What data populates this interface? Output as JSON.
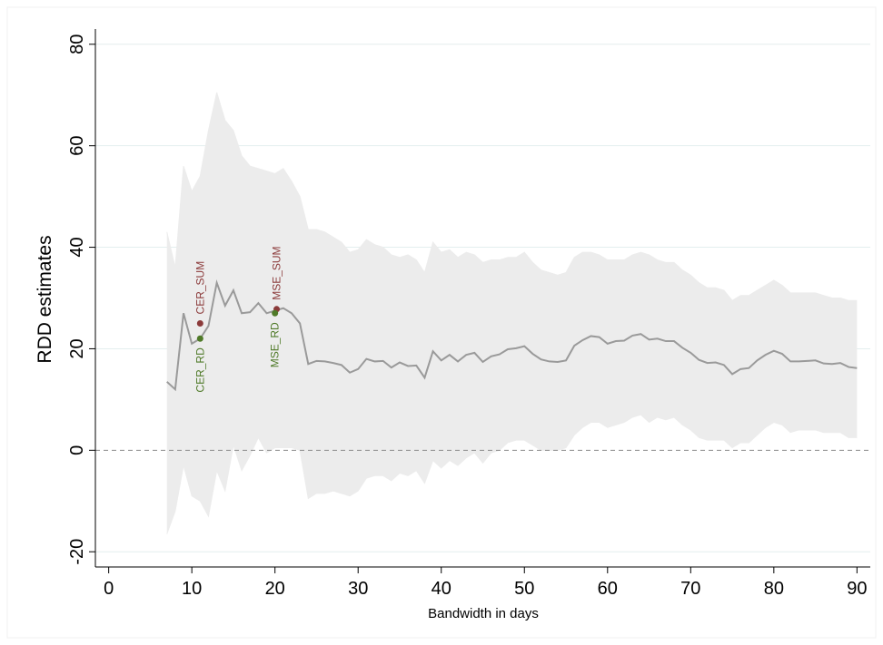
{
  "chart_data": {
    "type": "line",
    "x_label": "Bandwidth in days",
    "y_label": "RDD estimates",
    "x": [
      7,
      8,
      9,
      10,
      11,
      12,
      13,
      14,
      15,
      16,
      17,
      18,
      19,
      20,
      21,
      22,
      23,
      24,
      25,
      26,
      27,
      28,
      29,
      30,
      31,
      32,
      33,
      34,
      35,
      36,
      37,
      38,
      39,
      40,
      41,
      42,
      43,
      44,
      45,
      46,
      47,
      48,
      49,
      50,
      51,
      52,
      53,
      54,
      55,
      56,
      57,
      58,
      59,
      60,
      61,
      62,
      63,
      64,
      65,
      66,
      67,
      68,
      69,
      70,
      71,
      72,
      73,
      74,
      75,
      76,
      77,
      78,
      79,
      80,
      81,
      82,
      83,
      84,
      85,
      86,
      87,
      88,
      89,
      90
    ],
    "series": [
      {
        "color": "#9a9a9a",
        "values": [
          13.5,
          12,
          27,
          21,
          22,
          24.5,
          33,
          28.5,
          31.5,
          27,
          27.2,
          29,
          27,
          27.5,
          28,
          27,
          25,
          17,
          17.6,
          17.5,
          17.2,
          16.8,
          15.3,
          16,
          18,
          17.5,
          17.6,
          16.3,
          17.3,
          16.6,
          16.7,
          14.3,
          19.5,
          17.7,
          18.8,
          17.5,
          18.8,
          19.2,
          17.4,
          18.5,
          18.9,
          19.9,
          20.1,
          20.5,
          19,
          17.9,
          17.5,
          17.4,
          17.7,
          20.6,
          21.7,
          22.5,
          22.3,
          21,
          21.5,
          21.6,
          22.6,
          22.9,
          21.8,
          22,
          21.5,
          21.5,
          20.2,
          19.2,
          17.8,
          17.2,
          17.3,
          16.8,
          15,
          16,
          16.2,
          17.7,
          18.8,
          19.6,
          19,
          17.5,
          17.5,
          17.6,
          17.7,
          17.1,
          17,
          17.2,
          16.4,
          16.2
        ]
      }
    ],
    "band": {
      "color": "#ececec",
      "upper": [
        43,
        36,
        56,
        51,
        54,
        63,
        70.5,
        65,
        63,
        58,
        56,
        55.5,
        55,
        54.5,
        55.5,
        53,
        50,
        43.5,
        43.5,
        43,
        42,
        41,
        39,
        39.5,
        41.5,
        40.5,
        40,
        38.5,
        38,
        38.5,
        37.5,
        35,
        41,
        39,
        39.5,
        38,
        39,
        38.5,
        37,
        37.5,
        37.5,
        38,
        38,
        39,
        37,
        35.5,
        35,
        34.5,
        35,
        38,
        39,
        39,
        38.5,
        37.5,
        37.5,
        37.5,
        38.5,
        39,
        38.5,
        37.5,
        37,
        37,
        35.5,
        34.5,
        33,
        32,
        32,
        31.5,
        29.5,
        30.5,
        30.5,
        31.5,
        32.5,
        33.5,
        32.5,
        31,
        31,
        31,
        31,
        30.5,
        30,
        30,
        29.5,
        29.5
      ],
      "lower": [
        -16.5,
        -12,
        -3,
        -9,
        -10,
        -13,
        -4,
        -8,
        1,
        -4,
        -1,
        2.5,
        -0.5,
        0.5,
        0.5,
        0.5,
        0,
        -9.5,
        -8.5,
        -8.5,
        -8,
        -8.5,
        -9,
        -8,
        -5.5,
        -5,
        -5,
        -6,
        -4.5,
        -5,
        -4,
        -6.5,
        -2,
        -3.5,
        -2,
        -3,
        -1.5,
        -0.5,
        -2.5,
        -0.5,
        0,
        1.5,
        2,
        2,
        1,
        0,
        0,
        0,
        0.5,
        3,
        4.5,
        5.5,
        5.5,
        4.5,
        5,
        5.5,
        6.5,
        7,
        5.5,
        6.5,
        6,
        6.5,
        5,
        4,
        2.5,
        2,
        2,
        2,
        0.5,
        1.5,
        1.5,
        3,
        4.5,
        5.5,
        5,
        3.5,
        4,
        4,
        4,
        3.5,
        3.5,
        3.5,
        2.5,
        2.5
      ]
    },
    "points": [
      {
        "name": "CER_SUM",
        "x": 11,
        "y": 25,
        "color": "#8b3a3a",
        "label_side": "above"
      },
      {
        "name": "CER_RD",
        "x": 11,
        "y": 22,
        "color": "#4f7a28",
        "label_side": "below"
      },
      {
        "name": "MSE_SUM",
        "x": 20.2,
        "y": 27.8,
        "color": "#8b3a3a",
        "label_side": "above"
      },
      {
        "name": "MSE_RD",
        "x": 20,
        "y": 27,
        "color": "#4f7a28",
        "label_side": "below"
      }
    ],
    "xlim": [
      -1.6,
      91.6
    ],
    "ylim": [
      -23,
      83
    ],
    "xticks": [
      0,
      10,
      20,
      30,
      40,
      50,
      60,
      70,
      80,
      90
    ],
    "yticks": [
      -20,
      0,
      20,
      40,
      60,
      80
    ],
    "zero_line": 0,
    "grid": true
  }
}
